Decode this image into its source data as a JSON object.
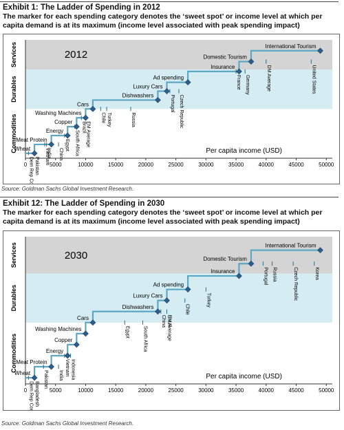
{
  "chart_data": [
    {
      "type": "line",
      "exhibit_label": "Exhibit 1: The Ladder of Spending in 2012",
      "subtitle_line1": "The marker for each spending category denotes the ‘sweet spot’ or income level at which per",
      "subtitle_line2": "capita demand is at its maximum (income level associated with peak spending impact)",
      "year_label": "2012",
      "xlabel": "Per capita income (USD)",
      "xlim": [
        0,
        51000
      ],
      "xticks": [
        0,
        5000,
        10000,
        15000,
        20000,
        25000,
        30000,
        35000,
        40000,
        45000,
        50000
      ],
      "xtick_labels": [
        "0",
        "5000",
        "10000",
        "15000",
        "20000",
        "25000",
        "30000",
        "35000",
        "40000",
        "45000",
        "50000"
      ],
      "bands": [
        {
          "name": "Commodities",
          "color": "#ffffff",
          "levels": [
            0,
            5
          ]
        },
        {
          "name": "Durables",
          "color": "#d5ecf2",
          "levels": [
            5,
            9
          ]
        },
        {
          "name": "Services",
          "color": "#d4d4d4",
          "levels": [
            9,
            12
          ]
        }
      ],
      "source": "Source: Goldman Sachs Global Investment Research.",
      "categories": [
        {
          "label": "Wheat",
          "x": 1500,
          "level": 0.5
        },
        {
          "label": "Meat Protein",
          "x": 4300,
          "level": 1.4
        },
        {
          "label": "Energy",
          "x": 7000,
          "level": 2.3
        },
        {
          "label": "Copper",
          "x": 8500,
          "level": 3.2
        },
        {
          "label": "Washing Machines",
          "x": 10000,
          "level": 4.1
        },
        {
          "label": "Cars",
          "x": 11200,
          "level": 5.0
        },
        {
          "label": "Dishwashers",
          "x": 22000,
          "level": 5.9
        },
        {
          "label": "Luxury Cars",
          "x": 23500,
          "level": 6.8
        },
        {
          "label": "Ad spending",
          "x": 27000,
          "level": 7.7
        },
        {
          "label": "Insurance",
          "x": 35500,
          "level": 8.8
        },
        {
          "label": "Domestic Tourism",
          "x": 37500,
          "level": 9.8
        },
        {
          "label": "International Tourism",
          "x": 49000,
          "level": 10.9
        }
      ],
      "countries": [
        {
          "name": "Dem Rep Congo",
          "x": 500,
          "level": 0.5
        },
        {
          "name": "Pakistan",
          "x": 1500,
          "level": 0.5
        },
        {
          "name": "India",
          "x": 3500,
          "level": 1.4
        },
        {
          "name": "Vietnam",
          "x": 3200,
          "level": 1.4
        },
        {
          "name": "China",
          "x": 5500,
          "level": 1.4
        },
        {
          "name": "Egypt",
          "x": 6500,
          "level": 2.3
        },
        {
          "name": "South Africa",
          "x": 8200,
          "level": 3.2
        },
        {
          "name": "Brazil",
          "x": 9300,
          "level": 4.1
        },
        {
          "name": "EM Average",
          "x": 10000,
          "level": 4.1
        },
        {
          "name": "Chile",
          "x": 12500,
          "level": 5.0
        },
        {
          "name": "Turkey",
          "x": 13500,
          "level": 5.0
        },
        {
          "name": "Russia",
          "x": 17500,
          "level": 5.0
        },
        {
          "name": "Portugal",
          "x": 24000,
          "level": 6.8
        },
        {
          "name": "Czech Republic",
          "x": 25500,
          "level": 6.8
        },
        {
          "name": "France",
          "x": 35000,
          "level": 8.8
        },
        {
          "name": "Germany",
          "x": 36500,
          "level": 8.8
        },
        {
          "name": "DM Average",
          "x": 40000,
          "level": 9.8
        },
        {
          "name": "United States",
          "x": 47500,
          "level": 9.8
        }
      ]
    },
    {
      "type": "line",
      "exhibit_label": "Exhibit 12: The Ladder of Spending in 2030",
      "subtitle_line1": "The marker for each spending category denotes the ‘sweet spot’ or income level at which per",
      "subtitle_line2": "capita demand is at its maximum (income level associated with peak spending impact)",
      "year_label": "2030",
      "xlabel": "Per capita income (USD)",
      "xlim": [
        0,
        51000
      ],
      "xticks": [
        0,
        5000,
        10000,
        15000,
        20000,
        25000,
        30000,
        35000,
        40000,
        45000,
        50000
      ],
      "xtick_labels": [
        "0",
        "5000",
        "10000",
        "15000",
        "20000",
        "25000",
        "30000",
        "35000",
        "40000",
        "45000",
        "50000"
      ],
      "bands": [
        {
          "name": "Commodities",
          "color": "#ffffff",
          "levels": [
            0,
            5
          ]
        },
        {
          "name": "Durables",
          "color": "#d5ecf2",
          "levels": [
            5,
            9
          ]
        },
        {
          "name": "Services",
          "color": "#d4d4d4",
          "levels": [
            9,
            12
          ]
        }
      ],
      "source": "Source: Goldman Sachs Global Investment Research.",
      "categories": [
        {
          "label": "Wheat",
          "x": 1500,
          "level": 0.5
        },
        {
          "label": "Meat Protein",
          "x": 4300,
          "level": 1.4
        },
        {
          "label": "Energy",
          "x": 7000,
          "level": 2.3
        },
        {
          "label": "Copper",
          "x": 8500,
          "level": 3.2
        },
        {
          "label": "Washing Machines",
          "x": 10000,
          "level": 4.1
        },
        {
          "label": "Cars",
          "x": 11200,
          "level": 5.0
        },
        {
          "label": "Dishwashers",
          "x": 22000,
          "level": 5.9
        },
        {
          "label": "Luxury Cars",
          "x": 23500,
          "level": 6.8
        },
        {
          "label": "Ad spending",
          "x": 27000,
          "level": 7.7
        },
        {
          "label": "Insurance",
          "x": 35500,
          "level": 8.8
        },
        {
          "label": "Domestic Tourism",
          "x": 37500,
          "level": 9.8
        },
        {
          "label": "International Tourism",
          "x": 49000,
          "level": 10.9
        }
      ],
      "countries": [
        {
          "name": "Dem Rep Congo",
          "x": 500,
          "level": 0.5
        },
        {
          "name": "Bangladesh",
          "x": 1500,
          "level": 0.5
        },
        {
          "name": "Pakistan",
          "x": 3000,
          "level": 1.4
        },
        {
          "name": "India",
          "x": 5500,
          "level": 1.4
        },
        {
          "name": "Vietnam",
          "x": 6500,
          "level": 2.3
        },
        {
          "name": "Indonesia",
          "x": 7500,
          "level": 2.3
        },
        {
          "name": "Egypt",
          "x": 16500,
          "level": 5.0
        },
        {
          "name": "South Africa",
          "x": 19500,
          "level": 5.0
        },
        {
          "name": "Brazil",
          "x": 23500,
          "level": 5.9
        },
        {
          "name": "China",
          "x": 22500,
          "level": 5.9
        },
        {
          "name": "EM Average",
          "x": 23500,
          "level": 5.9
        },
        {
          "name": "Chile",
          "x": 26500,
          "level": 6.8
        },
        {
          "name": "Turkey",
          "x": 30000,
          "level": 7.7
        },
        {
          "name": "Portugal",
          "x": 39500,
          "level": 9.8
        },
        {
          "name": "Russia",
          "x": 41000,
          "level": 9.8
        },
        {
          "name": "Czech Republic",
          "x": 44500,
          "level": 9.8
        },
        {
          "name": "Korea",
          "x": 48000,
          "level": 9.8
        }
      ]
    }
  ]
}
